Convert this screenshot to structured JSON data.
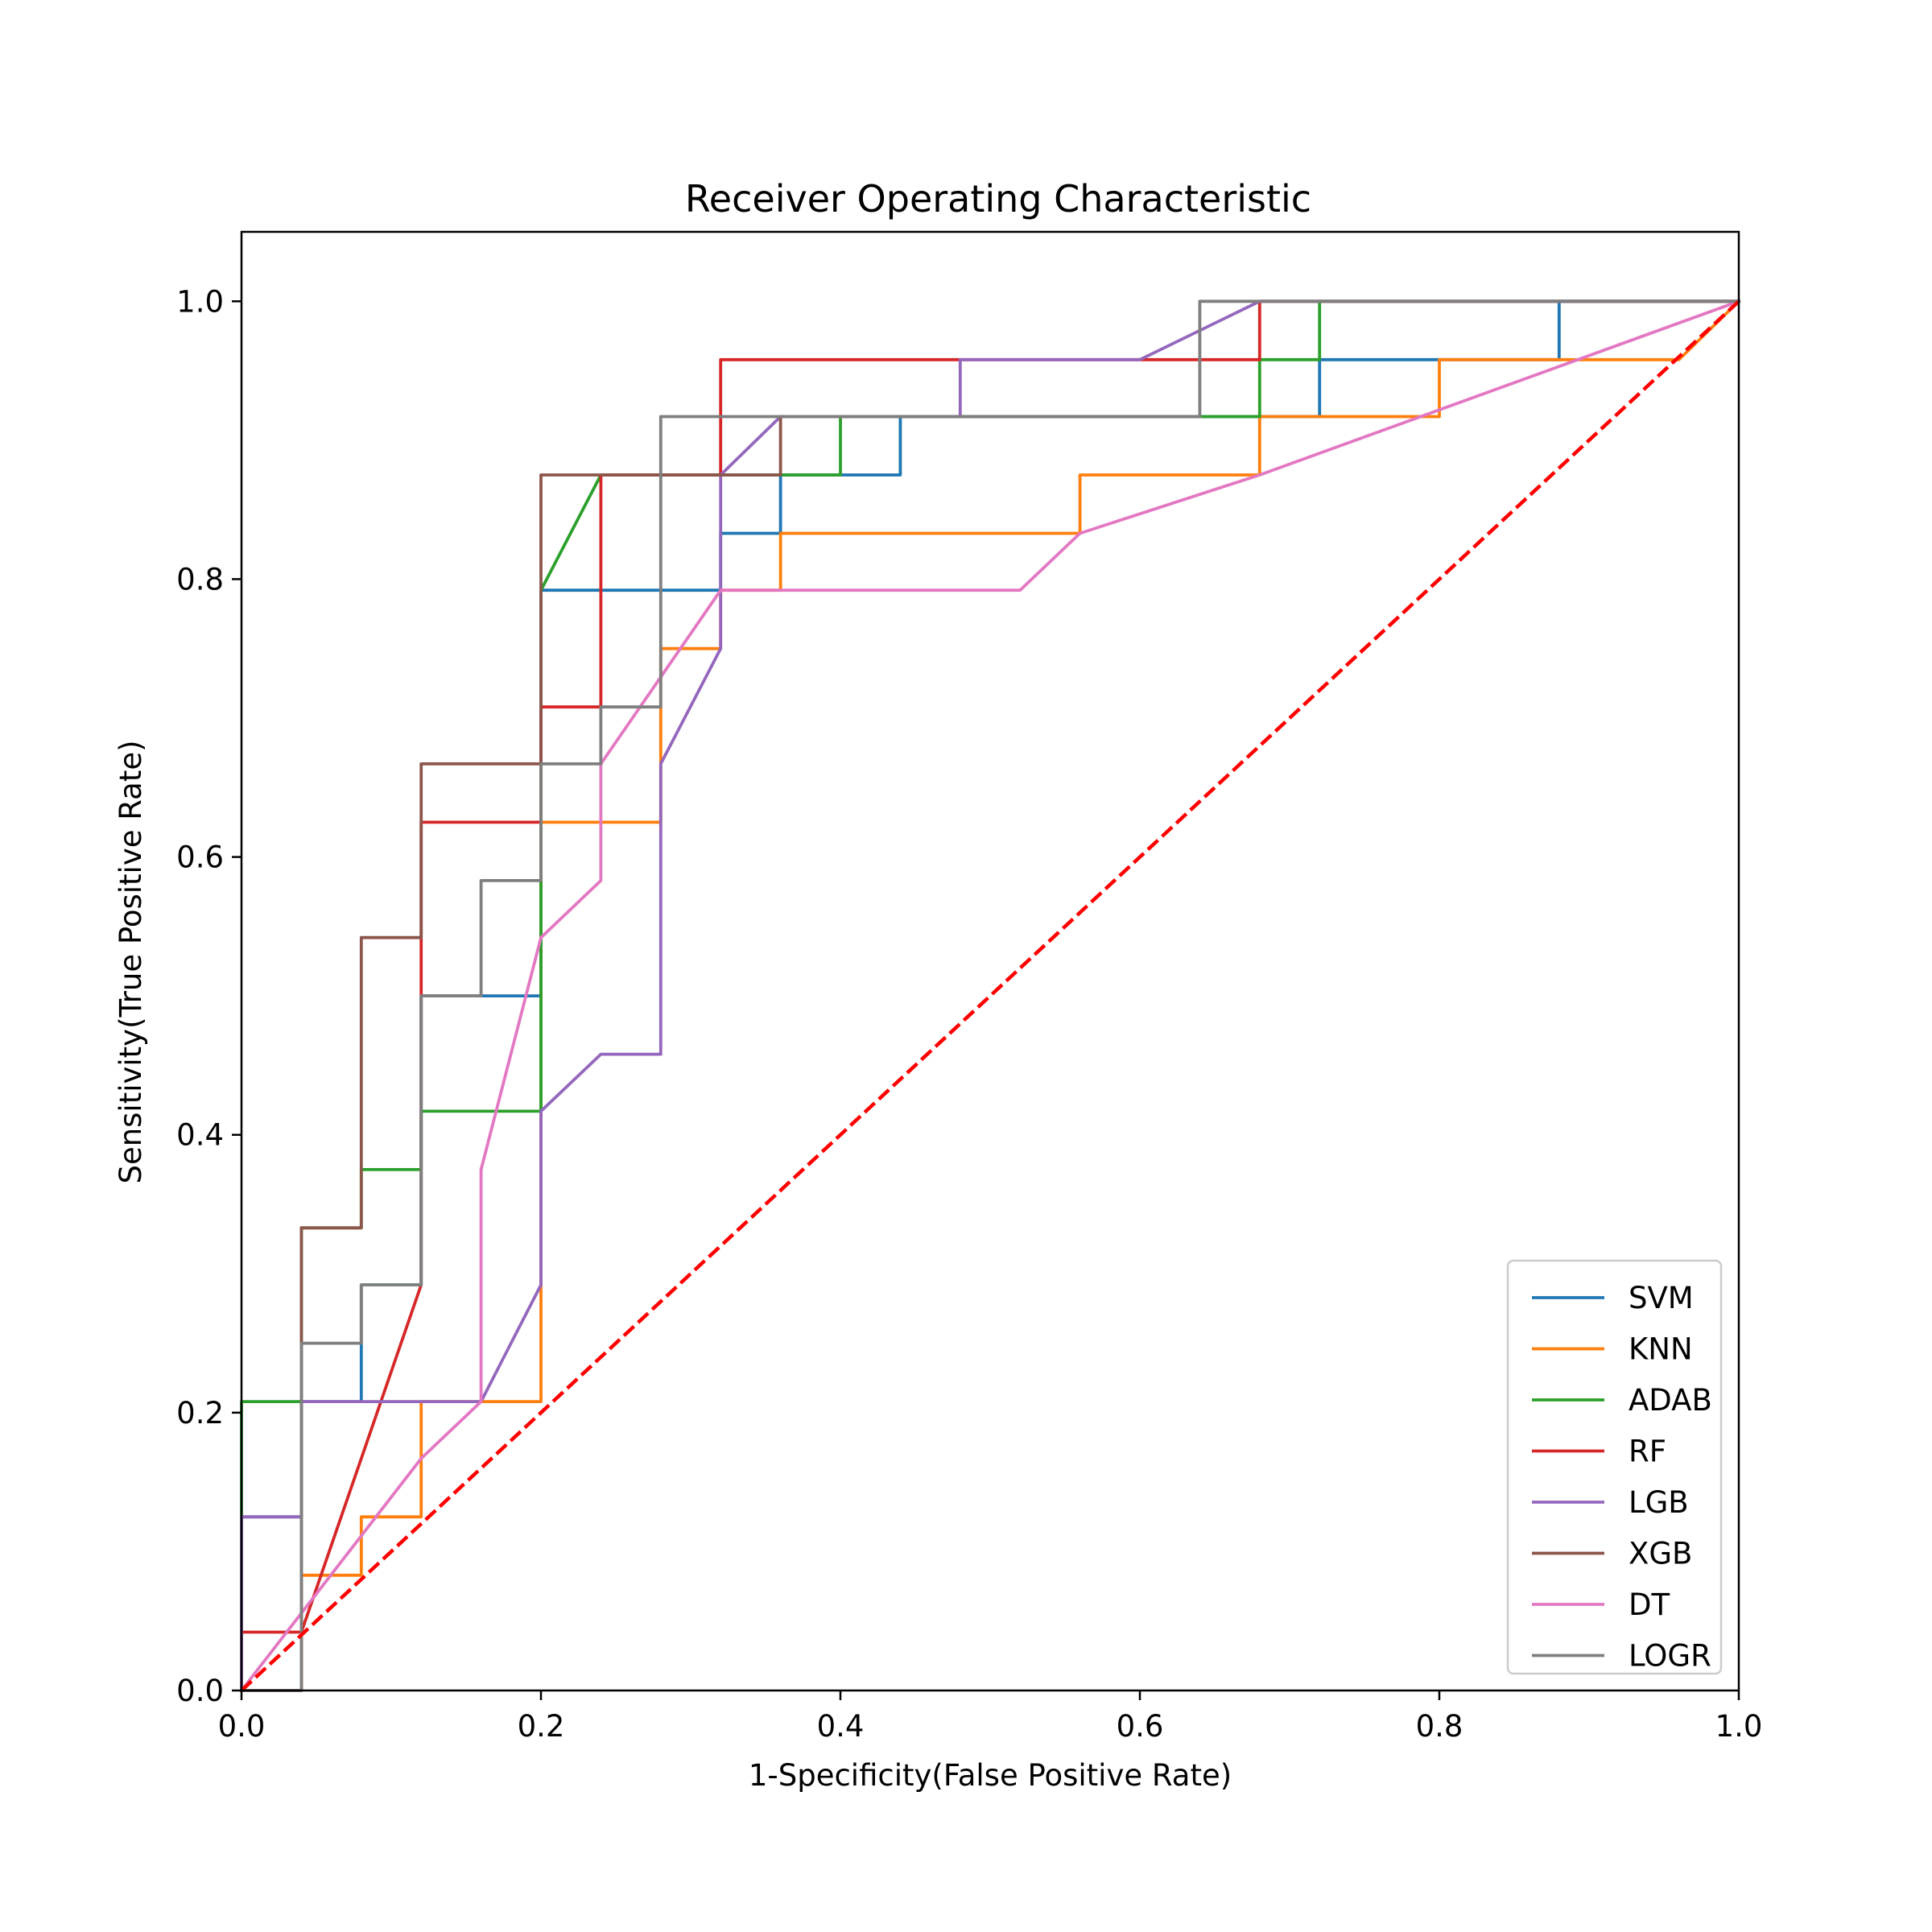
{
  "chart_data": {
    "type": "line",
    "title": "Receiver Operating Characteristic",
    "xlabel": "1-Specificity(False Positive Rate)",
    "ylabel": "Sensitivity(True Positive Rate)",
    "xlim": [
      0.0,
      1.0
    ],
    "ylim": [
      0.0,
      1.05
    ],
    "xticks": [
      "0.0",
      "0.2",
      "0.4",
      "0.6",
      "0.8",
      "1.0"
    ],
    "yticks": [
      "0.0",
      "0.2",
      "0.4",
      "0.6",
      "0.8",
      "1.0"
    ],
    "grid": false,
    "legend_position": "lower-right",
    "series": [
      {
        "name": "SVM",
        "color": "#1f77b4",
        "x": [
          0,
          0,
          0.04,
          0.04,
          0.08,
          0.08,
          0.12,
          0.12,
          0.16,
          0.16,
          0.2,
          0.2,
          0.32,
          0.32,
          0.36,
          0.36,
          0.44,
          0.44,
          0.72,
          0.72,
          0.88,
          0.88,
          1
        ],
        "y": [
          0,
          0.125,
          0.125,
          0.208,
          0.208,
          0.292,
          0.292,
          0.5,
          0.5,
          0.5,
          0.5,
          0.792,
          0.792,
          0.833,
          0.833,
          0.875,
          0.875,
          0.917,
          0.917,
          0.958,
          0.958,
          1,
          1
        ]
      },
      {
        "name": "KNN",
        "color": "#ff7f0e",
        "x": [
          0,
          0.04,
          0.04,
          0.08,
          0.08,
          0.12,
          0.12,
          0.2,
          0.2,
          0.28,
          0.28,
          0.32,
          0.32,
          0.36,
          0.36,
          0.56,
          0.56,
          0.68,
          0.68,
          0.8,
          0.8,
          0.96,
          1
        ],
        "y": [
          0,
          0,
          0.083,
          0.083,
          0.125,
          0.125,
          0.208,
          0.208,
          0.625,
          0.625,
          0.75,
          0.75,
          0.792,
          0.792,
          0.833,
          0.833,
          0.875,
          0.875,
          0.917,
          0.917,
          0.958,
          0.958,
          1
        ]
      },
      {
        "name": "ADAB",
        "color": "#2ca02c",
        "x": [
          0,
          0,
          0.04,
          0.04,
          0.08,
          0.08,
          0.12,
          0.12,
          0.2,
          0.2,
          0.24,
          0.28,
          0.28,
          0.36,
          0.36,
          0.4,
          0.4,
          0.56,
          0.56,
          0.68,
          0.68,
          0.72,
          0.72,
          1
        ],
        "y": [
          0,
          0.208,
          0.208,
          0.333,
          0.333,
          0.375,
          0.375,
          0.417,
          0.417,
          0.792,
          0.875,
          0.875,
          0.875,
          0.875,
          0.875,
          0.875,
          0.917,
          0.917,
          0.917,
          0.917,
          0.958,
          0.958,
          1,
          1
        ]
      },
      {
        "name": "RF",
        "color": "#d62728",
        "x": [
          0,
          0,
          0.04,
          0.04,
          0.12,
          0.12,
          0.2,
          0.2,
          0.24,
          0.24,
          0.32,
          0.32,
          0.64,
          0.68,
          0.68,
          1
        ],
        "y": [
          0,
          0.042,
          0.042,
          0.042,
          0.292,
          0.625,
          0.625,
          0.708,
          0.708,
          0.875,
          0.875,
          0.958,
          0.958,
          0.958,
          1,
          1
        ]
      },
      {
        "name": "LGB",
        "color": "#9467bd",
        "x": [
          0,
          0,
          0.04,
          0.04,
          0.16,
          0.2,
          0.2,
          0.24,
          0.28,
          0.28,
          0.32,
          0.32,
          0.36,
          0.48,
          0.48,
          0.6,
          0.68,
          1
        ],
        "y": [
          0,
          0.125,
          0.125,
          0.208,
          0.208,
          0.292,
          0.417,
          0.458,
          0.458,
          0.667,
          0.75,
          0.875,
          0.917,
          0.917,
          0.958,
          0.958,
          1,
          1
        ]
      },
      {
        "name": "XGB",
        "color": "#8c564b",
        "x": [
          0,
          0.04,
          0.04,
          0.08,
          0.08,
          0.12,
          0.12,
          0.2,
          0.2,
          0.36,
          0.36
        ],
        "y": [
          0,
          0,
          0.333,
          0.333,
          0.542,
          0.542,
          0.667,
          0.667,
          0.875,
          0.875,
          0.917
        ]
      },
      {
        "name": "DT",
        "color": "#e377c2",
        "x": [
          0,
          0.12,
          0.16,
          0.16,
          0.2,
          0.24,
          0.24,
          0.32,
          0.52,
          0.56,
          0.68,
          1
        ],
        "y": [
          0,
          0.167,
          0.208,
          0.375,
          0.542,
          0.583,
          0.667,
          0.792,
          0.792,
          0.833,
          0.875,
          1
        ]
      },
      {
        "name": "LOGR",
        "color": "#7f7f7f",
        "x": [
          0,
          0.04,
          0.04,
          0.08,
          0.08,
          0.12,
          0.12,
          0.16,
          0.16,
          0.2,
          0.2,
          0.24,
          0.24,
          0.28,
          0.28,
          0.64,
          0.64,
          1
        ],
        "y": [
          0,
          0,
          0.25,
          0.25,
          0.292,
          0.292,
          0.5,
          0.5,
          0.583,
          0.583,
          0.667,
          0.667,
          0.708,
          0.708,
          0.917,
          0.917,
          1,
          1
        ]
      }
    ],
    "reference_line": {
      "x": [
        0,
        1
      ],
      "y": [
        0,
        1
      ],
      "color": "#ff0000",
      "style": "dashed"
    }
  }
}
